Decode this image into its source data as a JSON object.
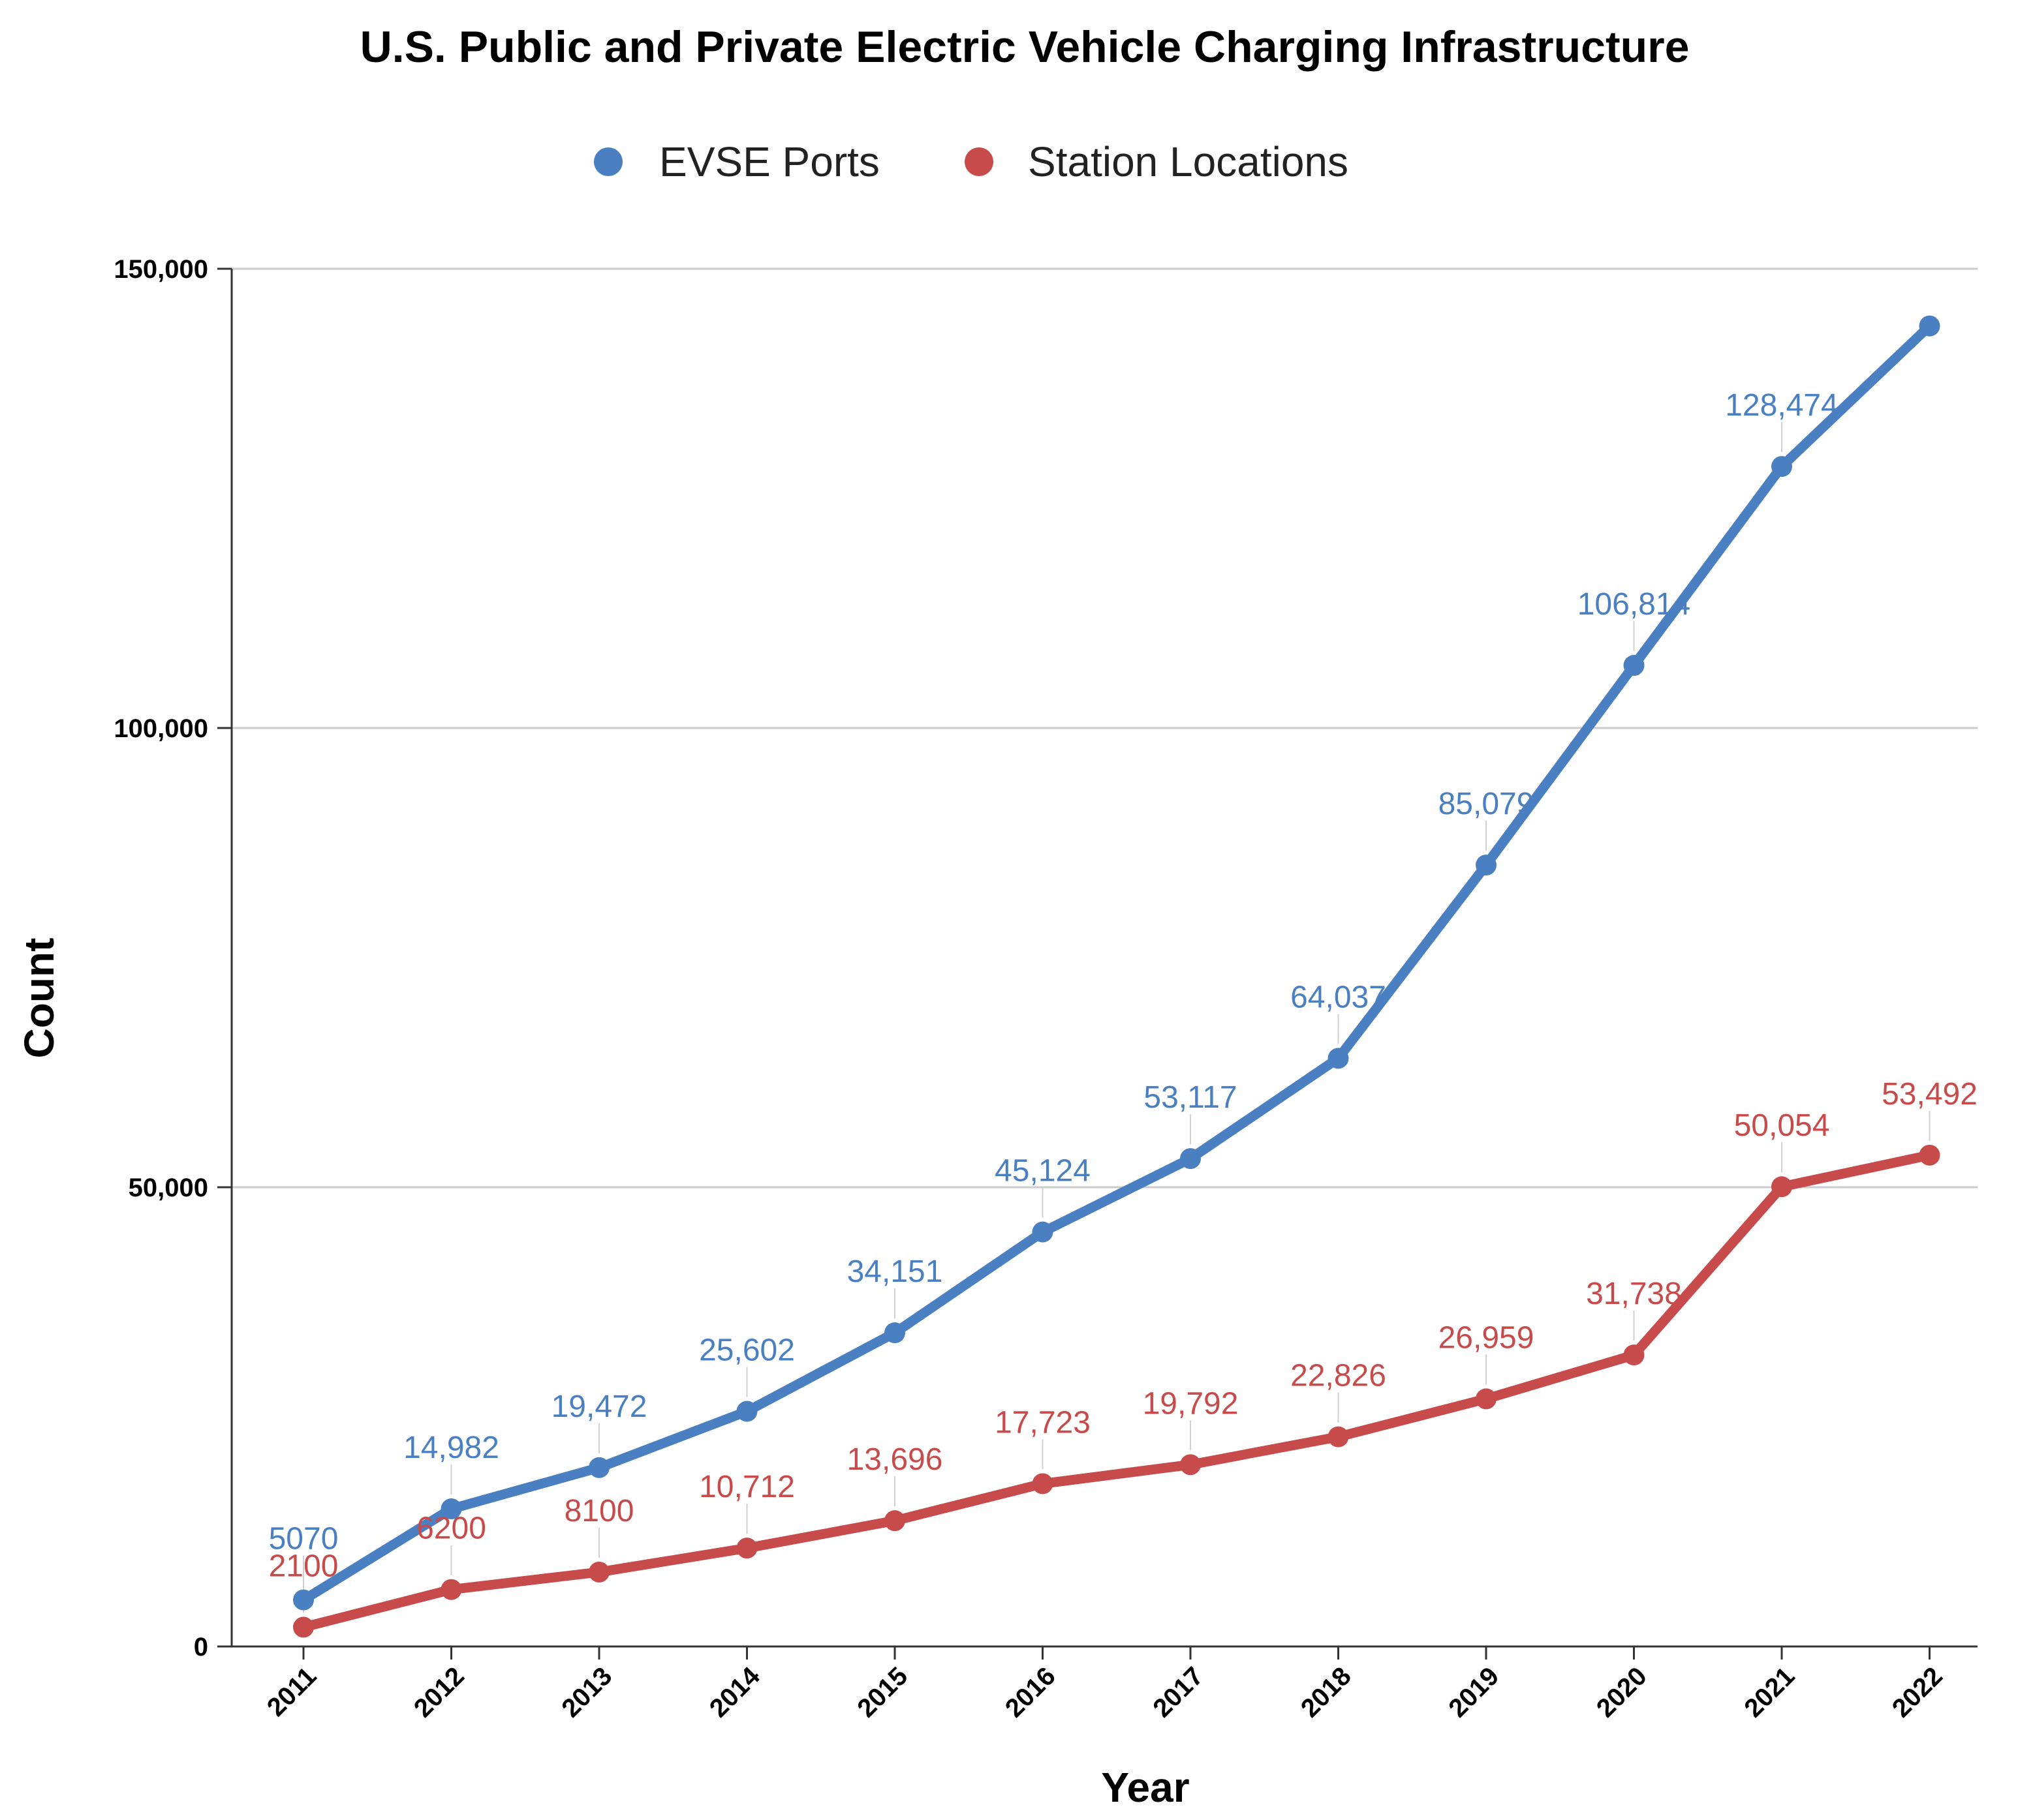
{
  "chart_data": {
    "type": "line",
    "title": "U.S. Public and Private Electric Vehicle Charging Infrastructure",
    "xlabel": "Year",
    "ylabel": "Count",
    "categories": [
      "2011",
      "2012",
      "2013",
      "2014",
      "2015",
      "2016",
      "2017",
      "2018",
      "2019",
      "2020",
      "2021",
      "2022"
    ],
    "ylim": [
      0,
      150000
    ],
    "yticks": [
      0,
      50000,
      100000,
      150000
    ],
    "ytick_labels": [
      "0",
      "50,000",
      "100,000",
      "150,000"
    ],
    "grid": true,
    "legend_position": "top-center",
    "series": [
      {
        "name": "EVSE Ports",
        "color": "#4a7fc1",
        "values": [
          5070,
          14982,
          19472,
          25602,
          34151,
          45124,
          53117,
          64037,
          85079,
          106814,
          128474,
          143771
        ],
        "labels": [
          "5070",
          "14,982",
          "19,472",
          "25,602",
          "34,151",
          "45,124",
          "53,117",
          "64,037",
          "85,079",
          "106,814",
          "128,474",
          ""
        ]
      },
      {
        "name": "Station Locations",
        "color": "#c84b4b",
        "values": [
          2100,
          6200,
          8100,
          10712,
          13696,
          17723,
          19792,
          22826,
          26959,
          31738,
          50054,
          53492
        ],
        "labels": [
          "2100",
          "6200",
          "8100",
          "10,712",
          "13,696",
          "17,723",
          "19,792",
          "22,826",
          "26,959",
          "31,738",
          "50,054",
          "53,492"
        ]
      }
    ]
  }
}
